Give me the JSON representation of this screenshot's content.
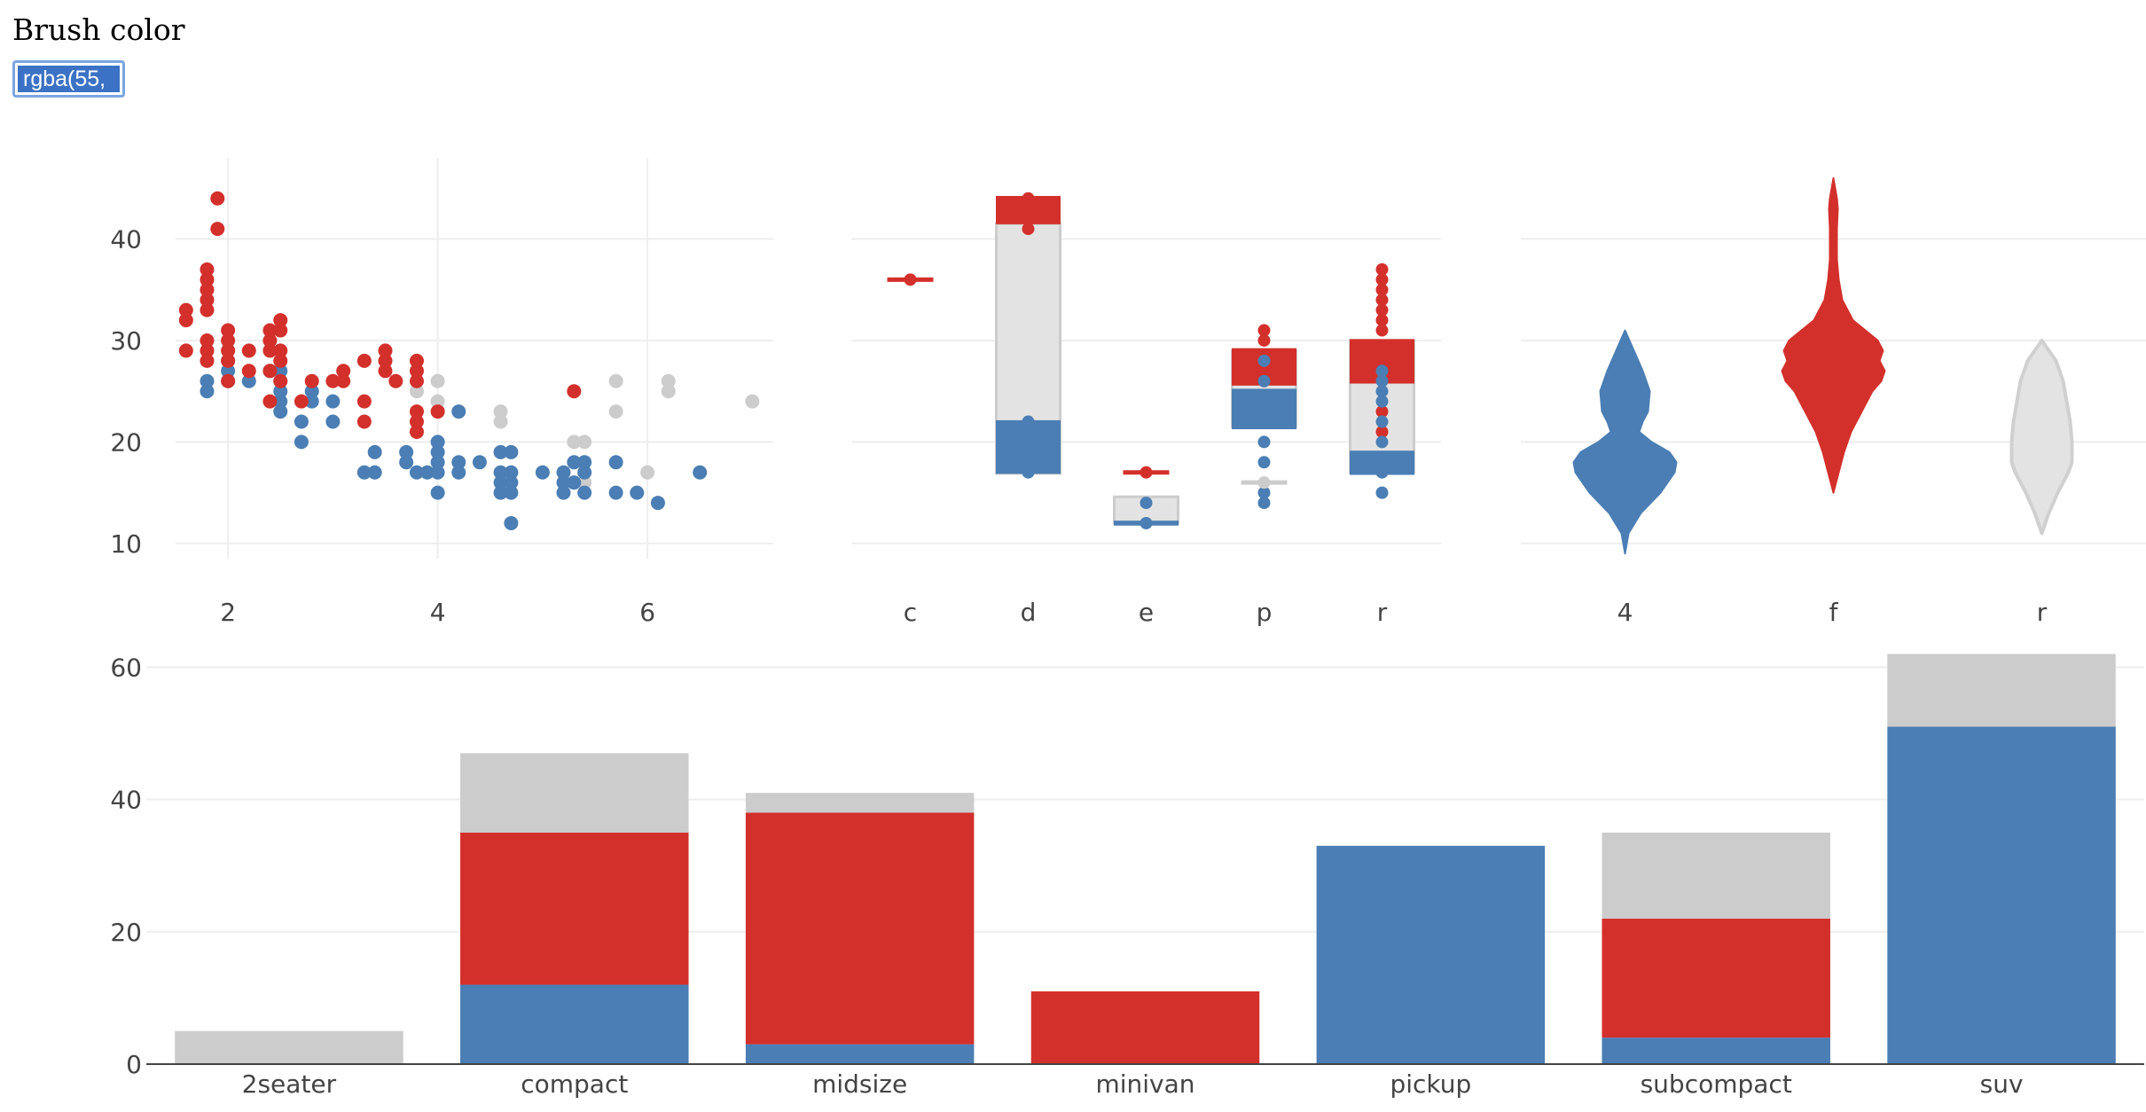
{
  "brush": {
    "label": "Brush color",
    "value": "rgba(55,"
  },
  "colors": {
    "red": "#d3302b",
    "blue": "#4a7eb4",
    "gray": "#cccccc",
    "lightgray": "#e3e3e3",
    "grid": "#eeeeee",
    "axis": "#444444"
  },
  "chart_data": [
    {
      "type": "scatter",
      "xlabel": "",
      "ylabel": "",
      "xlim": [
        1.5,
        7.2
      ],
      "ylim": [
        8.5,
        48
      ],
      "xticks": [
        2,
        4,
        6
      ],
      "yticks": [
        10,
        20,
        30,
        40
      ],
      "series": [
        {
          "name": "red",
          "color": "#d3302b",
          "points": [
            [
              1.6,
              33
            ],
            [
              1.6,
              32
            ],
            [
              1.6,
              29
            ],
            [
              1.8,
              37
            ],
            [
              1.8,
              36
            ],
            [
              1.8,
              35
            ],
            [
              1.8,
              34
            ],
            [
              1.8,
              33
            ],
            [
              1.8,
              30
            ],
            [
              1.8,
              29
            ],
            [
              1.8,
              28
            ],
            [
              1.9,
              44
            ],
            [
              1.9,
              41
            ],
            [
              2.0,
              31
            ],
            [
              2.0,
              30
            ],
            [
              2.0,
              29
            ],
            [
              2.0,
              28
            ],
            [
              2.0,
              26
            ],
            [
              2.2,
              29
            ],
            [
              2.2,
              27
            ],
            [
              2.4,
              31
            ],
            [
              2.4,
              30
            ],
            [
              2.4,
              29
            ],
            [
              2.4,
              27
            ],
            [
              2.4,
              24
            ],
            [
              2.5,
              32
            ],
            [
              2.5,
              31
            ],
            [
              2.5,
              29
            ],
            [
              2.5,
              28
            ],
            [
              2.5,
              26
            ],
            [
              2.7,
              24
            ],
            [
              2.8,
              26
            ],
            [
              3.0,
              26
            ],
            [
              3.1,
              27
            ],
            [
              3.1,
              26
            ],
            [
              3.3,
              28
            ],
            [
              3.3,
              24
            ],
            [
              3.3,
              22
            ],
            [
              3.5,
              29
            ],
            [
              3.5,
              28
            ],
            [
              3.5,
              27
            ],
            [
              3.6,
              26
            ],
            [
              3.8,
              28
            ],
            [
              3.8,
              27
            ],
            [
              3.8,
              26
            ],
            [
              3.8,
              23
            ],
            [
              3.8,
              22
            ],
            [
              3.8,
              21
            ],
            [
              4.0,
              23
            ],
            [
              5.3,
              25
            ]
          ]
        },
        {
          "name": "blue",
          "color": "#4a7eb4",
          "points": [
            [
              1.8,
              26
            ],
            [
              1.8,
              25
            ],
            [
              2.0,
              28
            ],
            [
              2.0,
              27
            ],
            [
              2.0,
              26
            ],
            [
              2.2,
              26
            ],
            [
              2.4,
              27
            ],
            [
              2.5,
              27
            ],
            [
              2.5,
              26
            ],
            [
              2.5,
              25
            ],
            [
              2.5,
              24
            ],
            [
              2.5,
              23
            ],
            [
              2.7,
              22
            ],
            [
              2.7,
              20
            ],
            [
              2.8,
              25
            ],
            [
              2.8,
              24
            ],
            [
              3.0,
              24
            ],
            [
              3.0,
              22
            ],
            [
              3.3,
              17
            ],
            [
              3.4,
              19
            ],
            [
              3.4,
              17
            ],
            [
              3.7,
              19
            ],
            [
              3.7,
              18
            ],
            [
              3.8,
              17
            ],
            [
              3.9,
              17
            ],
            [
              4.0,
              20
            ],
            [
              4.0,
              19
            ],
            [
              4.0,
              18
            ],
            [
              4.0,
              17
            ],
            [
              4.0,
              15
            ],
            [
              4.2,
              23
            ],
            [
              4.2,
              18
            ],
            [
              4.2,
              17
            ],
            [
              4.4,
              18
            ],
            [
              4.6,
              19
            ],
            [
              4.6,
              17
            ],
            [
              4.6,
              16
            ],
            [
              4.6,
              15
            ],
            [
              4.7,
              19
            ],
            [
              4.7,
              17
            ],
            [
              4.7,
              16
            ],
            [
              4.7,
              15
            ],
            [
              4.7,
              12
            ],
            [
              5.0,
              17
            ],
            [
              5.2,
              17
            ],
            [
              5.2,
              16
            ],
            [
              5.2,
              15
            ],
            [
              5.3,
              18
            ],
            [
              5.3,
              16
            ],
            [
              5.4,
              18
            ],
            [
              5.4,
              17
            ],
            [
              5.4,
              15
            ],
            [
              5.7,
              18
            ],
            [
              5.7,
              15
            ],
            [
              5.9,
              15
            ],
            [
              6.1,
              14
            ],
            [
              6.5,
              17
            ]
          ]
        },
        {
          "name": "gray",
          "color": "#cccccc",
          "points": [
            [
              3.8,
              25
            ],
            [
              4.0,
              26
            ],
            [
              4.0,
              24
            ],
            [
              4.6,
              23
            ],
            [
              4.6,
              22
            ],
            [
              5.3,
              20
            ],
            [
              5.4,
              20
            ],
            [
              5.4,
              16
            ],
            [
              5.7,
              26
            ],
            [
              5.7,
              23
            ],
            [
              6.0,
              17
            ],
            [
              6.2,
              26
            ],
            [
              6.2,
              25
            ],
            [
              7.0,
              24
            ]
          ]
        }
      ]
    },
    {
      "type": "box",
      "categories": [
        "c",
        "d",
        "e",
        "p",
        "r"
      ],
      "ylim": [
        8.5,
        48
      ],
      "yticks": [
        10,
        20,
        30,
        40
      ],
      "boxes": [
        {
          "category": "c",
          "color": "#d3302b",
          "q1": 36,
          "q3": 36,
          "median": 36,
          "points": [
            36
          ]
        },
        {
          "category": "d",
          "color": "#e3e3e3",
          "q1": 16.9,
          "q3": 41.5,
          "median": 22
        },
        {
          "category": "d",
          "color": "#d3302b",
          "q1": 41.5,
          "q3": 44.2,
          "median": 44,
          "points": [
            44,
            41
          ]
        },
        {
          "category": "d",
          "color": "#4a7eb4",
          "q1": 16.9,
          "q3": 22.1,
          "median": 17,
          "points": [
            22,
            17
          ]
        },
        {
          "category": "e",
          "color": "#e3e3e3",
          "q1": 12,
          "q3": 14.6,
          "median": 12
        },
        {
          "category": "e",
          "color": "#d3302b",
          "q1": 17,
          "q3": 17,
          "median": 17,
          "points": [
            17
          ]
        },
        {
          "category": "e",
          "color": "#4a7eb4",
          "q1": 11.8,
          "q3": 12.2,
          "median": 12,
          "points": [
            12,
            14
          ]
        },
        {
          "category": "p",
          "color": "#e3e3e3",
          "q1": 21.5,
          "q3": 29,
          "median": 25
        },
        {
          "category": "p",
          "color": "#d3302b",
          "q1": 25.6,
          "q3": 29.2,
          "median": 26,
          "points": [
            31,
            30,
            28,
            26
          ]
        },
        {
          "category": "p",
          "color": "#4a7eb4",
          "q1": 21.3,
          "q3": 25.2,
          "median": 24,
          "points": [
            28,
            26,
            23,
            20,
            18,
            15,
            14
          ]
        },
        {
          "category": "p",
          "color": "#cccccc",
          "q1": 16,
          "q3": 16,
          "median": 16,
          "points": [
            16
          ]
        },
        {
          "category": "r",
          "color": "#e3e3e3",
          "q1": 17,
          "q3": 30,
          "median": 23
        },
        {
          "category": "r",
          "color": "#d3302b",
          "q1": 25.8,
          "q3": 30.1,
          "median": 27,
          "points": [
            37,
            36,
            35,
            34,
            33,
            32,
            31,
            23,
            21
          ]
        },
        {
          "category": "r",
          "color": "#4a7eb4",
          "q1": 16.8,
          "q3": 19.1,
          "median": 18,
          "points": [
            27,
            26,
            25,
            24,
            22,
            20,
            17,
            15
          ]
        }
      ]
    },
    {
      "type": "violin",
      "categories": [
        "4",
        "f",
        "r"
      ],
      "ylim": [
        8.5,
        48
      ],
      "yticks": [
        10,
        20,
        30,
        40
      ],
      "violins": [
        {
          "category": "4",
          "color": "#4a7eb4",
          "min": 9,
          "max": 31,
          "profile": [
            [
              9,
              0
            ],
            [
              11,
              4
            ],
            [
              13,
              18
            ],
            [
              15,
              40
            ],
            [
              17,
              56
            ],
            [
              18,
              58
            ],
            [
              19,
              50
            ],
            [
              20,
              30
            ],
            [
              21,
              16
            ],
            [
              22,
              20
            ],
            [
              23,
              26
            ],
            [
              25,
              28
            ],
            [
              27,
              20
            ],
            [
              29,
              10
            ],
            [
              31,
              0
            ]
          ]
        },
        {
          "category": "f",
          "color": "#d3302b",
          "min": 15,
          "max": 46,
          "profile": [
            [
              15,
              0
            ],
            [
              17,
              6
            ],
            [
              19,
              12
            ],
            [
              21,
              20
            ],
            [
              23,
              32
            ],
            [
              25,
              44
            ],
            [
              26,
              54
            ],
            [
              27,
              58
            ],
            [
              28,
              52
            ],
            [
              29,
              56
            ],
            [
              30,
              50
            ],
            [
              31,
              36
            ],
            [
              32,
              22
            ],
            [
              34,
              10
            ],
            [
              36,
              6
            ],
            [
              38,
              4
            ],
            [
              41,
              4
            ],
            [
              43,
              5
            ],
            [
              44,
              4
            ],
            [
              46,
              0
            ]
          ]
        },
        {
          "category": "r",
          "color": "#e3e3e3",
          "min": 11,
          "max": 30,
          "profile": [
            [
              11,
              0
            ],
            [
              13,
              8
            ],
            [
              15,
              18
            ],
            [
              17,
              30
            ],
            [
              18,
              34
            ],
            [
              20,
              34
            ],
            [
              22,
              32
            ],
            [
              24,
              28
            ],
            [
              26,
              24
            ],
            [
              28,
              16
            ],
            [
              30,
              0
            ]
          ]
        }
      ]
    },
    {
      "type": "bar",
      "stacked": true,
      "categories": [
        "2seater",
        "compact",
        "midsize",
        "minivan",
        "pickup",
        "subcompact",
        "suv"
      ],
      "ylim": [
        0,
        63
      ],
      "yticks": [
        0,
        20,
        40,
        60
      ],
      "series": [
        {
          "name": "blue",
          "color": "#4a7eb4",
          "values": [
            0,
            12,
            3,
            0,
            33,
            4,
            51
          ]
        },
        {
          "name": "red",
          "color": "#d3302b",
          "values": [
            0,
            23,
            35,
            11,
            0,
            18,
            0
          ]
        },
        {
          "name": "gray",
          "color": "#cccccc",
          "values": [
            5,
            12,
            3,
            0,
            0,
            13,
            11
          ]
        }
      ]
    }
  ]
}
